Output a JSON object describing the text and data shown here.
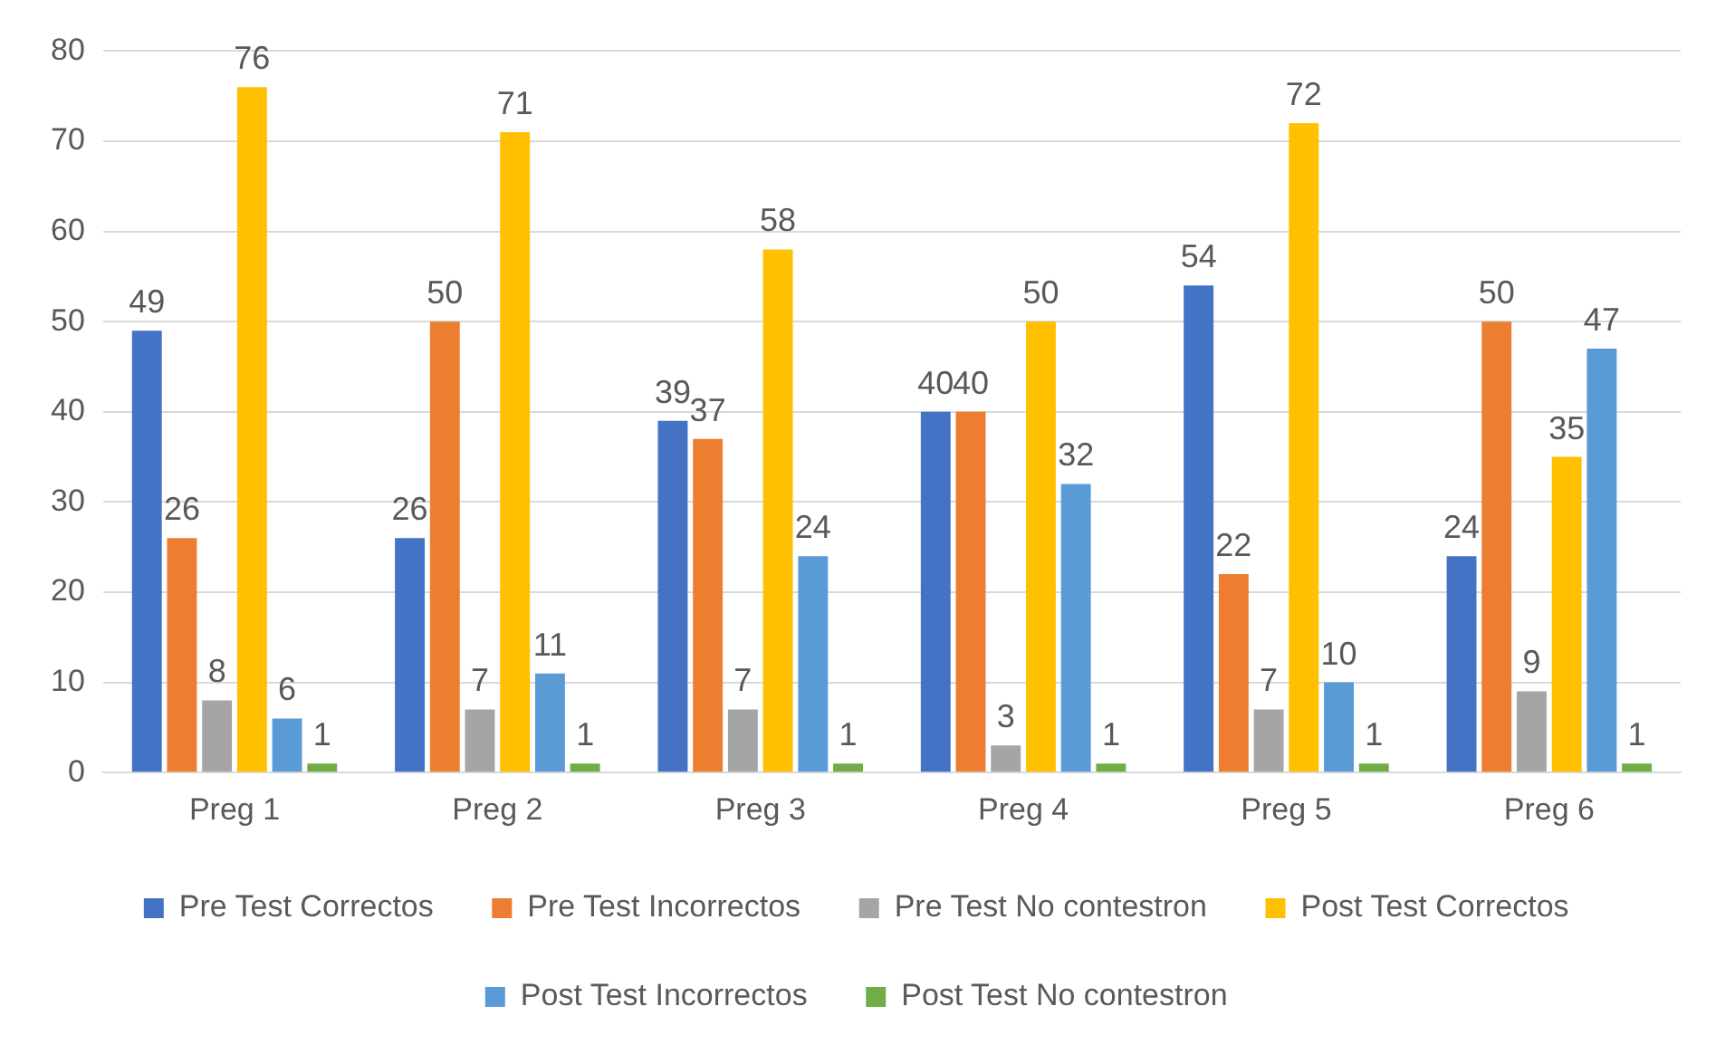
{
  "chart_data": {
    "type": "bar",
    "categories": [
      "Preg 1",
      "Preg 2",
      "Preg 3",
      "Preg 4",
      "Preg 5",
      "Preg 6"
    ],
    "series": [
      {
        "name": "Pre Test Correctos",
        "color": "#4472c4",
        "values": [
          49,
          26,
          39,
          40,
          54,
          24
        ]
      },
      {
        "name": "Pre Test Incorrectos",
        "color": "#ed7d31",
        "values": [
          26,
          50,
          37,
          40,
          22,
          50
        ]
      },
      {
        "name": "Pre Test No contestron",
        "color": "#a5a5a5",
        "values": [
          8,
          7,
          7,
          3,
          7,
          9
        ]
      },
      {
        "name": "Post Test Correctos",
        "color": "#ffc000",
        "values": [
          76,
          71,
          58,
          50,
          72,
          35
        ]
      },
      {
        "name": "Post Test Incorrectos",
        "color": "#5b9bd5",
        "values": [
          6,
          11,
          24,
          32,
          10,
          47
        ]
      },
      {
        "name": "Post Test No contestron",
        "color": "#70ad47",
        "values": [
          1,
          1,
          1,
          1,
          1,
          1
        ]
      }
    ],
    "ylim": [
      0,
      80
    ],
    "yticks": [
      0,
      10,
      20,
      30,
      40,
      50,
      60,
      70,
      80
    ],
    "grid": "y",
    "legend": "bottom",
    "data_labels": true
  }
}
